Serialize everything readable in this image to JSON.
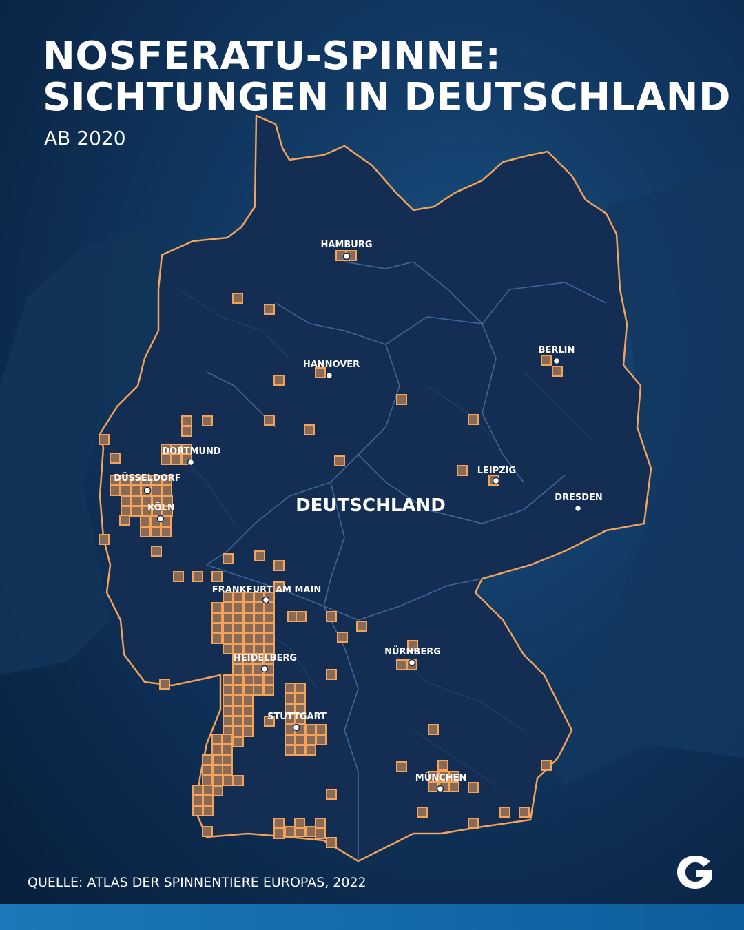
{
  "title_lines": [
    "NOSFERATU-SPINNE:",
    "SICHTUNGEN IN DEUTSCHLAND"
  ],
  "subtitle": "AB 2020",
  "source": "QUELLE: ATLAS DER SPINNENTIERE EUROPAS, 2022",
  "logo_icon": "g-logo-icon",
  "country_label": "DEUTSCHLAND",
  "colors": {
    "background": "#0c2a4d",
    "land": "#142f55",
    "border": "#f3a35a",
    "cell_fill": "#8a6a55",
    "internal_borders": "#3e6b9c",
    "accent_bar": "#1c78b8"
  },
  "cities": [
    {
      "name": "HAMBURG"
    },
    {
      "name": "BERLIN"
    },
    {
      "name": "HANNOVER"
    },
    {
      "name": "DORTMUND"
    },
    {
      "name": "DÜSSELDORF"
    },
    {
      "name": "KÖLN"
    },
    {
      "name": "LEIPZIG"
    },
    {
      "name": "DRESDEN"
    },
    {
      "name": "FRANKFURT AM MAIN"
    },
    {
      "name": "NÜRNBERG"
    },
    {
      "name": "HEIDELBERG"
    },
    {
      "name": "STUTTGART"
    },
    {
      "name": "MÜNCHEN"
    }
  ]
}
